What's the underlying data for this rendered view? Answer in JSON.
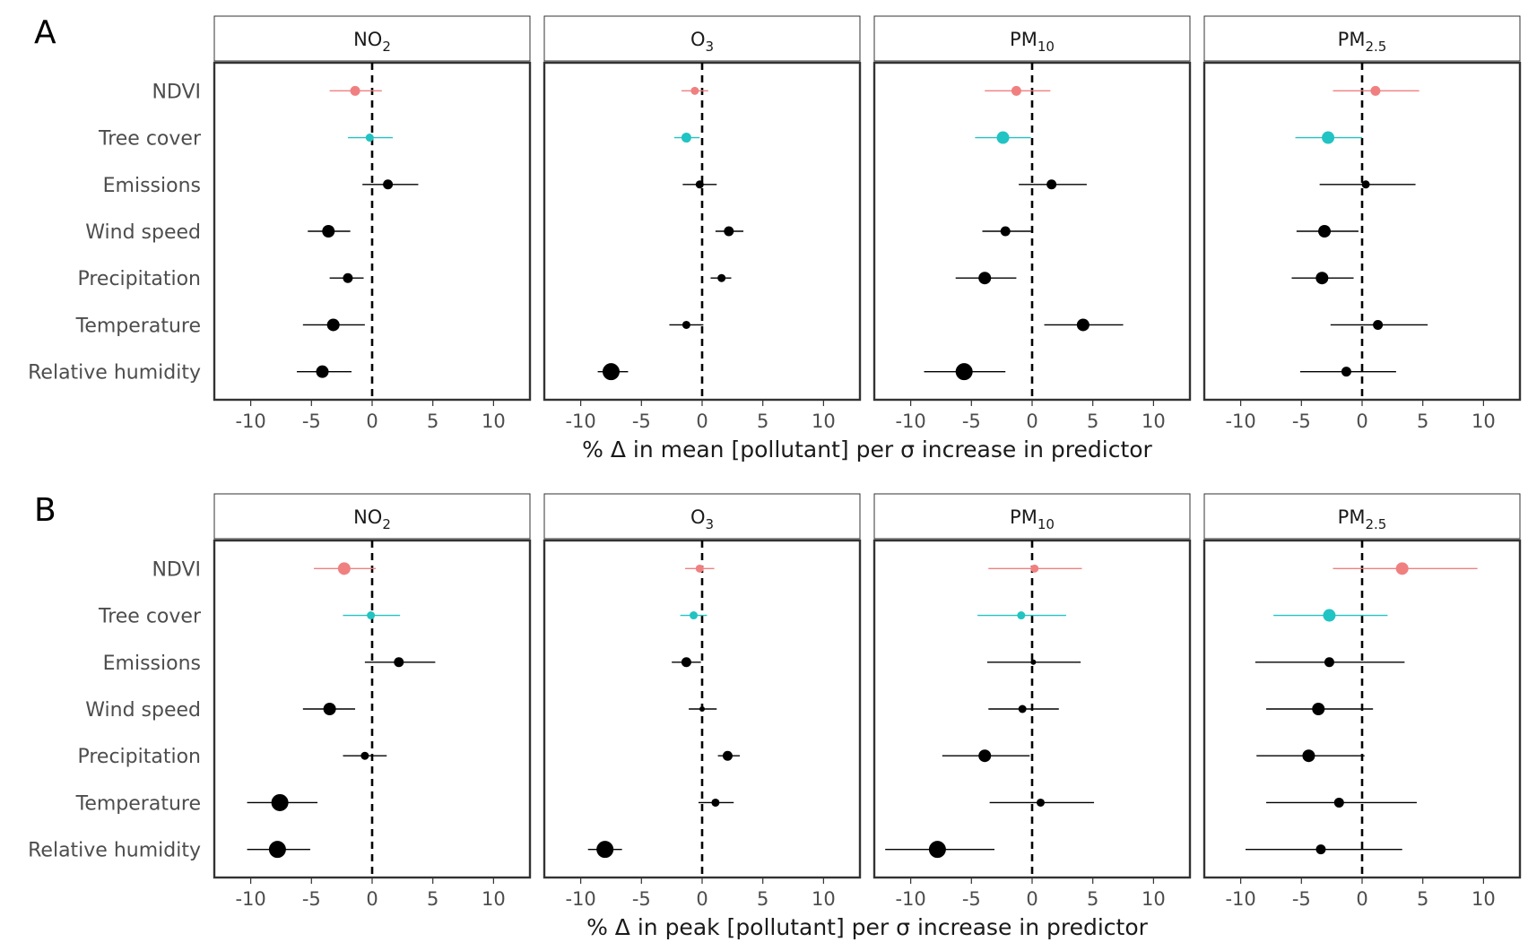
{
  "chart_data": [
    {
      "type": "forest",
      "panel_label": "A",
      "xlabel": "% Δ in mean [pollutant] per σ increase in predictor",
      "xlim": [
        -13,
        13
      ],
      "xticks": [
        -10,
        -5,
        0,
        5,
        10
      ],
      "reference_line": 0,
      "predictors": [
        "NDVI",
        "Tree cover",
        "Emissions",
        "Wind speed",
        "Precipitation",
        "Temperature",
        "Relative humidity"
      ],
      "facets": [
        {
          "title": "NO",
          "title_sub": "2",
          "estimates": [
            {
              "est": -1.4,
              "lo": -3.5,
              "hi": 0.8,
              "size": 2,
              "color": "#f08080"
            },
            {
              "est": -0.2,
              "lo": -2.0,
              "hi": 1.7,
              "size": 1,
              "color": "#22c3c3"
            },
            {
              "est": 1.3,
              "lo": -0.8,
              "hi": 3.8,
              "size": 2,
              "color": "#000000"
            },
            {
              "est": -3.6,
              "lo": -5.3,
              "hi": -1.8,
              "size": 3,
              "color": "#000000"
            },
            {
              "est": -2.0,
              "lo": -3.5,
              "hi": -0.7,
              "size": 2,
              "color": "#000000"
            },
            {
              "est": -3.2,
              "lo": -5.7,
              "hi": -0.6,
              "size": 3,
              "color": "#000000"
            },
            {
              "est": -4.1,
              "lo": -6.2,
              "hi": -1.7,
              "size": 3,
              "color": "#000000"
            }
          ]
        },
        {
          "title": "O",
          "title_sub": "3",
          "estimates": [
            {
              "est": -0.6,
              "lo": -1.7,
              "hi": 0.5,
              "size": 1,
              "color": "#f08080"
            },
            {
              "est": -1.3,
              "lo": -2.3,
              "hi": -0.2,
              "size": 2,
              "color": "#22c3c3"
            },
            {
              "est": -0.2,
              "lo": -1.6,
              "hi": 1.2,
              "size": 1,
              "color": "#000000"
            },
            {
              "est": 2.2,
              "lo": 1.1,
              "hi": 3.4,
              "size": 2,
              "color": "#000000"
            },
            {
              "est": 1.6,
              "lo": 0.7,
              "hi": 2.4,
              "size": 1,
              "color": "#000000"
            },
            {
              "est": -1.3,
              "lo": -2.7,
              "hi": 0.1,
              "size": 1,
              "color": "#000000"
            },
            {
              "est": -7.5,
              "lo": -8.6,
              "hi": -6.1,
              "size": 4,
              "color": "#000000"
            }
          ]
        },
        {
          "title": "PM",
          "title_sub": "10",
          "estimates": [
            {
              "est": -1.3,
              "lo": -3.9,
              "hi": 1.5,
              "size": 2,
              "color": "#f08080"
            },
            {
              "est": -2.4,
              "lo": -4.7,
              "hi": -0.1,
              "size": 3,
              "color": "#22c3c3"
            },
            {
              "est": 1.6,
              "lo": -1.1,
              "hi": 4.5,
              "size": 2,
              "color": "#000000"
            },
            {
              "est": -2.2,
              "lo": -4.1,
              "hi": -0.1,
              "size": 2,
              "color": "#000000"
            },
            {
              "est": -3.9,
              "lo": -6.3,
              "hi": -1.3,
              "size": 3,
              "color": "#000000"
            },
            {
              "est": 4.2,
              "lo": 1.0,
              "hi": 7.5,
              "size": 3,
              "color": "#000000"
            },
            {
              "est": -5.6,
              "lo": -8.9,
              "hi": -2.2,
              "size": 4,
              "color": "#000000"
            }
          ]
        },
        {
          "title": "PM",
          "title_sub": "2.5",
          "estimates": [
            {
              "est": 1.1,
              "lo": -2.4,
              "hi": 4.7,
              "size": 2,
              "color": "#f08080"
            },
            {
              "est": -2.8,
              "lo": -5.5,
              "hi": 0.0,
              "size": 3,
              "color": "#22c3c3"
            },
            {
              "est": 0.3,
              "lo": -3.5,
              "hi": 4.4,
              "size": 1,
              "color": "#000000"
            },
            {
              "est": -3.1,
              "lo": -5.4,
              "hi": -0.3,
              "size": 3,
              "color": "#000000"
            },
            {
              "est": -3.3,
              "lo": -5.8,
              "hi": -0.7,
              "size": 3,
              "color": "#000000"
            },
            {
              "est": 1.3,
              "lo": -2.6,
              "hi": 5.4,
              "size": 2,
              "color": "#000000"
            },
            {
              "est": -1.3,
              "lo": -5.1,
              "hi": 2.8,
              "size": 2,
              "color": "#000000"
            }
          ]
        }
      ]
    },
    {
      "type": "forest",
      "panel_label": "B",
      "xlabel": "% Δ in peak [pollutant] per σ increase in predictor",
      "xlim": [
        -13,
        13
      ],
      "xticks": [
        -10,
        -5,
        0,
        5,
        10
      ],
      "reference_line": 0,
      "predictors": [
        "NDVI",
        "Tree cover",
        "Emissions",
        "Wind speed",
        "Precipitation",
        "Temperature",
        "Relative humidity"
      ],
      "facets": [
        {
          "title": "NO",
          "title_sub": "2",
          "estimates": [
            {
              "est": -2.3,
              "lo": -4.8,
              "hi": 0.3,
              "size": 3,
              "color": "#f08080"
            },
            {
              "est": -0.1,
              "lo": -2.4,
              "hi": 2.3,
              "size": 1,
              "color": "#22c3c3"
            },
            {
              "est": 2.2,
              "lo": -0.6,
              "hi": 5.2,
              "size": 2,
              "color": "#000000"
            },
            {
              "est": -3.5,
              "lo": -5.7,
              "hi": -1.4,
              "size": 3,
              "color": "#000000"
            },
            {
              "est": -0.6,
              "lo": -2.4,
              "hi": 1.2,
              "size": 1,
              "color": "#000000"
            },
            {
              "est": -7.6,
              "lo": -10.3,
              "hi": -4.5,
              "size": 4,
              "color": "#000000"
            },
            {
              "est": -7.8,
              "lo": -10.3,
              "hi": -5.1,
              "size": 4,
              "color": "#000000"
            }
          ]
        },
        {
          "title": "O",
          "title_sub": "3",
          "estimates": [
            {
              "est": -0.2,
              "lo": -1.4,
              "hi": 1.0,
              "size": 1,
              "color": "#f08080"
            },
            {
              "est": -0.7,
              "lo": -1.8,
              "hi": 0.4,
              "size": 1,
              "color": "#22c3c3"
            },
            {
              "est": -1.3,
              "lo": -2.5,
              "hi": -0.1,
              "size": 2,
              "color": "#000000"
            },
            {
              "est": 0.0,
              "lo": -1.1,
              "hi": 1.2,
              "size": 0,
              "color": "#000000"
            },
            {
              "est": 2.1,
              "lo": 1.3,
              "hi": 3.1,
              "size": 2,
              "color": "#000000"
            },
            {
              "est": 1.1,
              "lo": -0.3,
              "hi": 2.6,
              "size": 1,
              "color": "#000000"
            },
            {
              "est": -8.0,
              "lo": -9.4,
              "hi": -6.6,
              "size": 4,
              "color": "#000000"
            }
          ]
        },
        {
          "title": "PM",
          "title_sub": "10",
          "estimates": [
            {
              "est": 0.2,
              "lo": -3.6,
              "hi": 4.1,
              "size": 1,
              "color": "#f08080"
            },
            {
              "est": -0.9,
              "lo": -4.5,
              "hi": 2.8,
              "size": 1,
              "color": "#22c3c3"
            },
            {
              "est": 0.1,
              "lo": -3.7,
              "hi": 4.0,
              "size": 0,
              "color": "#000000"
            },
            {
              "est": -0.8,
              "lo": -3.6,
              "hi": 2.2,
              "size": 1,
              "color": "#000000"
            },
            {
              "est": -3.9,
              "lo": -7.4,
              "hi": -0.2,
              "size": 3,
              "color": "#000000"
            },
            {
              "est": 0.7,
              "lo": -3.5,
              "hi": 5.1,
              "size": 1,
              "color": "#000000"
            },
            {
              "est": -7.8,
              "lo": -12.1,
              "hi": -3.1,
              "size": 4,
              "color": "#000000"
            }
          ]
        },
        {
          "title": "PM",
          "title_sub": "2.5",
          "estimates": [
            {
              "est": 3.3,
              "lo": -2.4,
              "hi": 9.5,
              "size": 3,
              "color": "#f08080"
            },
            {
              "est": -2.7,
              "lo": -7.3,
              "hi": 2.1,
              "size": 3,
              "color": "#22c3c3"
            },
            {
              "est": -2.7,
              "lo": -8.8,
              "hi": 3.5,
              "size": 2,
              "color": "#000000"
            },
            {
              "est": -3.6,
              "lo": -7.9,
              "hi": 0.9,
              "size": 3,
              "color": "#000000"
            },
            {
              "est": -4.4,
              "lo": -8.7,
              "hi": 0.2,
              "size": 3,
              "color": "#000000"
            },
            {
              "est": -1.9,
              "lo": -7.9,
              "hi": 4.5,
              "size": 2,
              "color": "#000000"
            },
            {
              "est": -3.4,
              "lo": -9.6,
              "hi": 3.3,
              "size": 2,
              "color": "#000000"
            }
          ]
        }
      ]
    }
  ]
}
